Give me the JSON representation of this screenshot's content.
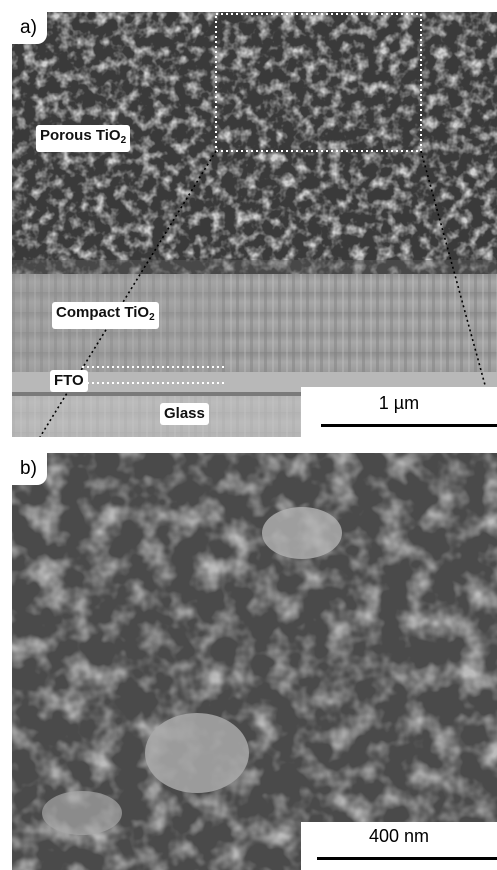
{
  "panel_a": {
    "tag": "a)",
    "labels": {
      "porous": "Porous TiO",
      "porous_sub": "2",
      "compact": "Compact TiO",
      "compact_sub": "2",
      "fto": "FTO",
      "glass": "Glass"
    },
    "scale_label": "1 µm"
  },
  "panel_b": {
    "tag": "b)",
    "scale_label": "400 nm"
  },
  "colors": {
    "sem_gray": "#8a8a8a",
    "compact_gray": "#a3a3a3",
    "glass_gray": "#b6b6b6",
    "dotted": "#ffffff",
    "zoom_line": "#000000"
  }
}
